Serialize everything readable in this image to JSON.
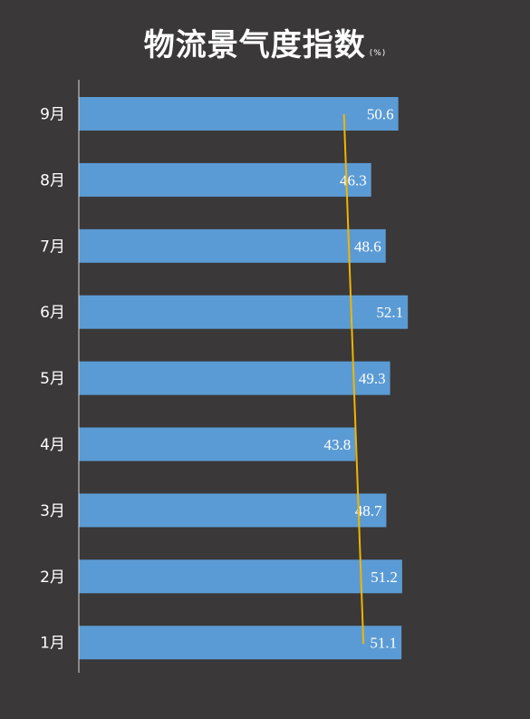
{
  "chart_data": {
    "type": "bar",
    "orientation": "horizontal",
    "title": "物流景气度指数",
    "unit": "(%)",
    "categories": [
      "1月",
      "2月",
      "3月",
      "4月",
      "5月",
      "6月",
      "7月",
      "8月",
      "9月"
    ],
    "values": [
      51.1,
      51.2,
      48.7,
      43.8,
      49.3,
      52.1,
      48.6,
      46.3,
      50.6
    ],
    "trend_line": {
      "from_category": "9月",
      "to_category": "1月"
    },
    "xlim": [
      0,
      55
    ],
    "grid": false,
    "legend": "none"
  },
  "colors": {
    "background": "#3a3838",
    "bar": "#5b9bd5",
    "trend_line": "#f0b400",
    "text": "#ffffff",
    "axis": "#d9d9d9"
  }
}
